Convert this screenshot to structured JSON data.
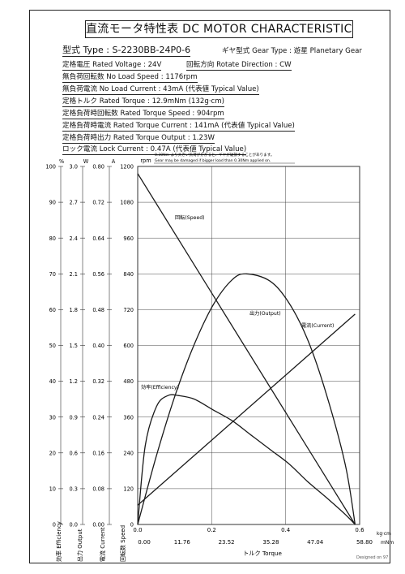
{
  "title": "直流モータ特性表 DC MOTOR CHARACTERISTICS",
  "model": "型式 Type : S-2230BB-24P0-6",
  "gear": "ギヤ型式 Gear Type : 遊星 Planetary Gear",
  "specs": [
    "定格電圧 Rated Voltage : 24V",
    "回転方向 Rotate Direction : CW",
    "無負荷回転数 No Load Speed : 1176rpm",
    "無負荷電流 No Load Current : 43mA (代表値 Typical Value)",
    "定格トルク Rated Torque : 12.9mNm (132g·cm)",
    "定格負荷時回転数 Rated Torque Speed : 904rpm",
    "定格負荷時電流 Rated Torque Current : 141mA (代表値 Typical Value)",
    "定格負荷時出力 Rated Torque Output : 1.23W",
    "ロック電流 Lock Current : 0.47A (代表値 Typical Value)"
  ],
  "warning_ja": "0.30Nm より大きい負荷がかかると、ギヤが破損することがあります。",
  "warning_en": "Gear may be damaged if bigger load than 0.30Nm applied on.",
  "designed": "Designed on 97",
  "colors": {
    "line": "#1a1a1a",
    "grid": "#333333"
  },
  "chart_data": {
    "type": "line",
    "xlabel": "トルク Torque",
    "x_axis_kgcm": {
      "unit": "kg·cm",
      "ticks": [
        "0.0",
        "0.2",
        "0.4",
        "0.6"
      ],
      "range": [
        0,
        0.6
      ]
    },
    "x_axis_mNm": {
      "unit": "mNm",
      "ticks": [
        "0.00",
        "11.76",
        "23.52",
        "35.28",
        "47.04",
        "58.80"
      ],
      "range": [
        0,
        58.8
      ]
    },
    "speed_axis": {
      "label": "回転数 Speed",
      "unit": "rpm",
      "range": [
        0,
        1200
      ],
      "ticks": [
        "0",
        "120",
        "240",
        "360",
        "480",
        "600",
        "720",
        "840",
        "960",
        "1080",
        "1200"
      ]
    },
    "current_axis": {
      "label": "電流 Current",
      "unit": "A",
      "range": [
        0,
        0.8
      ],
      "ticks": [
        "0.00",
        "0.08",
        "0.16",
        "0.24",
        "0.32",
        "0.40",
        "0.48",
        "0.56",
        "0.64",
        "0.72",
        "0.80"
      ]
    },
    "output_axis": {
      "label": "出力 Output",
      "unit": "W",
      "range": [
        0,
        3.0
      ],
      "ticks": [
        "0.0",
        "0.3",
        "0.6",
        "0.9",
        "1.2",
        "1.5",
        "1.8",
        "2.1",
        "2.4",
        "2.7",
        "3.0"
      ]
    },
    "efficiency_axis": {
      "label": "効率 Efficiency",
      "unit": "%",
      "range": [
        0,
        100
      ],
      "ticks": [
        "0",
        "10",
        "20",
        "30",
        "40",
        "50",
        "60",
        "70",
        "80",
        "90",
        "100"
      ]
    },
    "series": [
      {
        "name": "回転(Speed)",
        "axis": "speed",
        "x": [
          0,
          57.6
        ],
        "values": [
          1176,
          0
        ]
      },
      {
        "name": "電流(Current)",
        "axis": "current",
        "x": [
          0,
          57.6
        ],
        "values": [
          0.043,
          0.47
        ]
      },
      {
        "name": "出力(Output)",
        "axis": "output",
        "x": [
          0,
          5,
          10,
          15,
          20,
          25,
          28.8,
          35,
          40,
          45,
          50,
          55,
          57.6
        ],
        "values": [
          0,
          0.58,
          1.09,
          1.51,
          1.84,
          2.05,
          2.1,
          2.04,
          1.86,
          1.55,
          1.09,
          0.5,
          0
        ]
      },
      {
        "name": "効率(Efficiency)",
        "axis": "efficiency",
        "x": [
          0,
          2,
          5,
          8,
          10.8,
          15,
          20,
          25,
          30,
          35,
          40,
          45,
          50,
          55,
          57.6
        ],
        "values": [
          0,
          22,
          33,
          36,
          36,
          35,
          32,
          29,
          25,
          21,
          17,
          12,
          7.5,
          2.8,
          0
        ]
      }
    ],
    "grid": true
  }
}
